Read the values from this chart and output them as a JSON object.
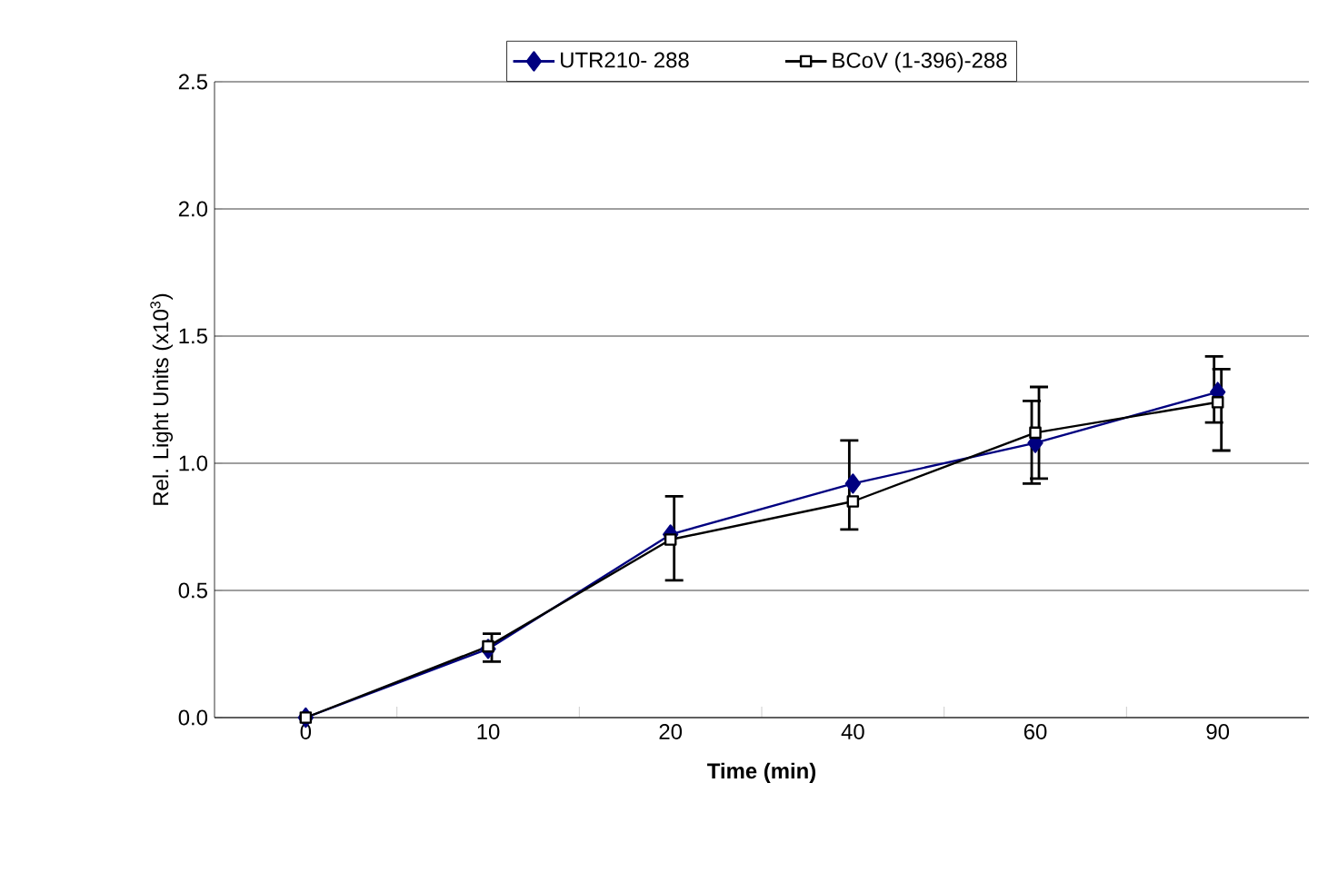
{
  "chart_data": {
    "type": "line",
    "xlabel": "Time (min)",
    "ylabel": "Rel. Light Units (x10$^{3}$)",
    "categories": [
      "0",
      "10",
      "20",
      "40",
      "60",
      "90"
    ],
    "series": [
      {
        "name": "UTR210- 288",
        "color": "#000080",
        "marker": "diamond",
        "values": [
          0,
          0.27,
          0.72,
          0.92,
          1.08,
          1.28
        ],
        "errors": [
          null,
          null,
          null,
          [
            0.74,
            1.09
          ],
          [
            0.92,
            1.245
          ],
          [
            1.16,
            1.42
          ]
        ]
      },
      {
        "name": "BCoV (1-396)-288",
        "color": "#000000",
        "marker": "square",
        "values": [
          0,
          0.28,
          0.7,
          0.85,
          1.12,
          1.24
        ],
        "errors": [
          null,
          [
            0.22,
            0.33
          ],
          [
            0.54,
            0.87
          ],
          null,
          [
            0.94,
            1.3
          ],
          [
            1.05,
            1.37
          ]
        ]
      }
    ],
    "ylim": [
      0,
      2.5
    ],
    "yticks": [
      {
        "value": 0,
        "label": "0.0"
      },
      {
        "value": 0.5,
        "label": "0.5"
      },
      {
        "value": 1,
        "label": "1.0"
      },
      {
        "value": 1.5,
        "label": "1.5"
      },
      {
        "value": 2,
        "label": "2.0"
      },
      {
        "value": 2.5,
        "label": "2.5"
      }
    ],
    "grid": "y",
    "legend": "top"
  }
}
